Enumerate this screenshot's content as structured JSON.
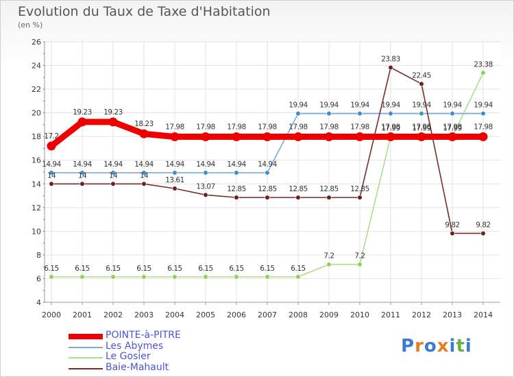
{
  "header": {
    "title": "Evolution du Taux de Taxe d'Habitation",
    "subtitle": "(en %)"
  },
  "logo": {
    "letters": [
      "P",
      "r",
      "o",
      "x",
      "i",
      "t",
      "i"
    ],
    "colors": [
      "#3a7bd5",
      "#e67e22",
      "#3a7bd5",
      "#e67e22",
      "#3a7bd5",
      "#6ab04c",
      "#3a7bd5"
    ]
  },
  "chart_data": {
    "type": "line",
    "title": "Evolution du Taux de Taxe d'Habitation",
    "subtitle": "(en %)",
    "x": [
      "2000",
      "2001",
      "2002",
      "2003",
      "2004",
      "2005",
      "2006",
      "2007",
      "2008",
      "2009",
      "2010",
      "2011",
      "2012",
      "2013",
      "2014"
    ],
    "ylim": [
      4,
      26
    ],
    "yticks": [
      "4",
      "6",
      "8",
      "10",
      "12",
      "14",
      "16",
      "18",
      "20",
      "22",
      "24",
      "26"
    ],
    "grid": true,
    "legend_position": "bottom-left",
    "series": [
      {
        "name": "POINTE-à-PITRE",
        "color": "#ee0000",
        "thick": true,
        "values": [
          17.2,
          19.23,
          19.23,
          18.23,
          17.98,
          17.98,
          17.98,
          17.98,
          17.98,
          17.98,
          17.98,
          17.98,
          17.98,
          17.98,
          17.98
        ],
        "labels": [
          "17.2",
          "19.23",
          "19.23",
          "18.23",
          "17.98",
          "17.98",
          "17.98",
          "17.98",
          "17.98",
          "17.98",
          "17.98",
          "17.98",
          "17.98",
          "17.98",
          "17.98"
        ]
      },
      {
        "name": "Les Abymes",
        "color": "#7aa9d6",
        "marker": "#3d8fcc",
        "values": [
          14.94,
          14.94,
          14.94,
          14.94,
          14.94,
          14.94,
          14.94,
          14.94,
          19.94,
          19.94,
          19.94,
          19.94,
          19.94,
          19.94,
          19.94
        ],
        "labels": [
          "14.94",
          "14.94",
          "14.94",
          "14.94",
          "14.94",
          "14.94",
          "14.94",
          "14.94",
          "19.94",
          "19.94",
          "19.94",
          "19.94",
          "19.94",
          "19.94",
          "19.94"
        ]
      },
      {
        "name": "Le Gosier",
        "color": "#a6e08a",
        "marker": "#8fd356",
        "values": [
          6.15,
          6.15,
          6.15,
          6.15,
          6.15,
          6.15,
          6.15,
          6.15,
          6.15,
          7.2,
          7.2,
          17.99,
          17.99,
          17.99,
          23.38
        ],
        "labels": [
          "6.15",
          "6.15",
          "6.15",
          "6.15",
          "6.15",
          "6.15",
          "6.15",
          "6.15",
          "6.15",
          "7.2",
          "7.2",
          "17.99",
          "17.99",
          "17.99",
          "23.38"
        ]
      },
      {
        "name": "Baie-Mahault",
        "color": "#7a2a2a",
        "marker": "#6b1f1f",
        "values": [
          14,
          14,
          14,
          14,
          13.61,
          13.07,
          12.85,
          12.85,
          12.85,
          12.85,
          12.85,
          23.83,
          22.45,
          9.82,
          9.82
        ],
        "labels": [
          "14",
          "14",
          "14",
          "14",
          "13.61",
          "13.07",
          "12.85",
          "12.85",
          "12.85",
          "12.85",
          "12.85",
          "23.83",
          "22.45",
          "9.82",
          "9.82"
        ]
      }
    ]
  }
}
